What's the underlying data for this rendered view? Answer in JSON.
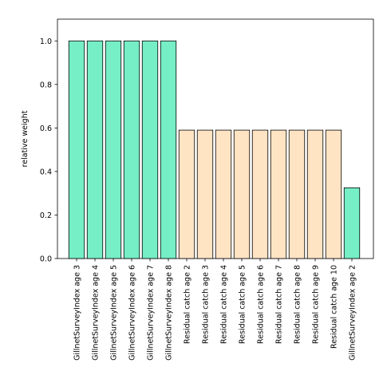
{
  "colors": {
    "survey": "#76eec6",
    "residual": "#ffe4c4",
    "bar_edge": "#000000",
    "axis": "#000000"
  },
  "chart_data": {
    "type": "bar",
    "title": "",
    "xlabel": "",
    "ylabel": "relative weight",
    "ylim": [
      0,
      1.1
    ],
    "yticks": [
      "0.0",
      "0.2",
      "0.4",
      "0.6",
      "0.8",
      "1.0"
    ],
    "grid": false,
    "categories": [
      "GillnetSurveyIndex age 3",
      "GillnetSurveyIndex age 4",
      "GillnetSurveyIndex age 5",
      "GillnetSurveyIndex age 6",
      "GillnetSurveyIndex age 7",
      "GillnetSurveyIndex age 8",
      "Residual catch age 2",
      "Residual catch age 3",
      "Residual catch age 4",
      "Residual catch age 5",
      "Residual catch age 6",
      "Residual catch age 7",
      "Residual catch age 8",
      "Residual catch age 9",
      "Residual catch age 10",
      "GillnetSurveyIndex age 2"
    ],
    "values": [
      1.0,
      1.0,
      1.0,
      1.0,
      1.0,
      1.0,
      0.59,
      0.59,
      0.59,
      0.59,
      0.59,
      0.59,
      0.59,
      0.59,
      0.59,
      0.325
    ],
    "bar_groups": [
      "survey",
      "survey",
      "survey",
      "survey",
      "survey",
      "survey",
      "residual",
      "residual",
      "residual",
      "residual",
      "residual",
      "residual",
      "residual",
      "residual",
      "residual",
      "survey"
    ]
  }
}
